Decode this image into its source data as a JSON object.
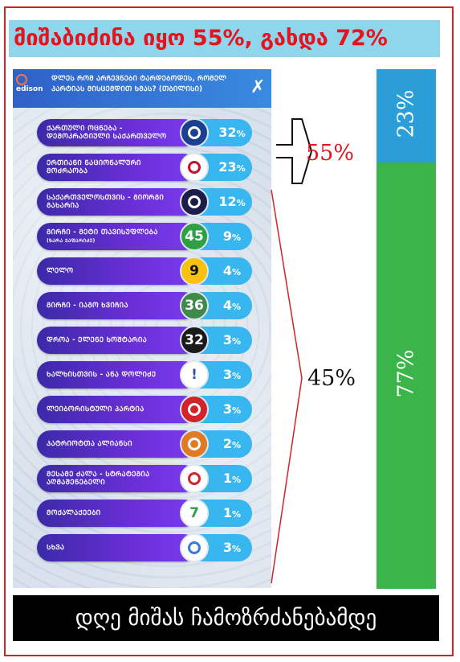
{
  "headline": "მიშაბიძინა იყო 55%, გახდა 72%",
  "poll": {
    "logo_text": "edison",
    "question": "ᲓᲚᲔᲡ ᲠᲝᲛ ᲐᲠᲩᲔᲕᲜᲔᲑᲘ ᲢᲐᲠᲓᲔᲑᲝᲓᲔᲡ, ᲠᲝᲛᲔᲚ ᲞᲐᲠᲢᲘᲐᲡ ᲛᲘᲡᲪᲔᲛᲓᲘᲗ ᲮᲛᲐᲡ? (ᲗᲑᲘᲚᲘᲡᲘ)",
    "rows": [
      {
        "label": "ᲥᲐᲠᲗᲣᲚᲘ ᲝᲪᲜᲔᲑᲐ - ᲓᲔᲛᲝᲙᲠᲐᲢᲘᲣᲚᲘ ᲡᲐᲥᲐᲠᲗᲕᲔᲚᲝ",
        "sub": "",
        "pct": "32",
        "logo_text": "",
        "logo_color": "#1c3f8f",
        "logo_bg": "#1c3f8f",
        "icon": "georgian-dream-logo-icon"
      },
      {
        "label": "ᲔᲠᲗᲘᲐᲜᲘ ᲜᲐᲪᲘᲝᲜᲐᲚᲣᲠᲘ ᲛᲝᲫᲠᲐᲝᲑᲐ",
        "sub": "",
        "pct": "23",
        "logo_text": "",
        "logo_color": "#c8102e",
        "logo_bg": "#ffffff",
        "icon": "unm-logo-icon"
      },
      {
        "label": "ᲡᲐᲥᲐᲠᲗᲕᲔᲚᲝᲡᲗᲕᲘᲡ - ᲒᲘᲝᲠᲒᲘ ᲒᲐᲮᲐᲠᲘᲐ",
        "sub": "",
        "pct": "12",
        "logo_text": "",
        "logo_color": "#2a2f9a",
        "logo_bg": "#1d1d4b",
        "icon": "for-georgia-logo-icon"
      },
      {
        "label": "ᲒᲘᲠᲩᲘ - ᲛᲔᲢᲘ ᲗᲐᲕᲘᲡᲣᲤᲚᲔᲑᲐ",
        "sub": "(ᲖᲐᲠᲐ ᲯᲐᲤᲐᲠᲘᲫᲔ)",
        "pct": "9",
        "logo_text": "45",
        "logo_color": "#ffffff",
        "logo_bg": "#2ea043",
        "icon": "girchi-more-freedom-logo-icon"
      },
      {
        "label": "ᲚᲔᲚᲝ",
        "sub": "",
        "pct": "4",
        "logo_text": "9",
        "logo_color": "#111111",
        "logo_bg": "#f6c20f",
        "icon": "lelo-logo-icon"
      },
      {
        "label": "ᲒᲘᲠᲩᲘ - ᲘᲐᲒᲝ ᲮᲕᲘᲩᲘᲐ",
        "sub": "",
        "pct": "4",
        "logo_text": "36",
        "logo_color": "#ffffff",
        "logo_bg": "#3e8a4a",
        "icon": "girchi-logo-icon"
      },
      {
        "label": "ᲓᲠᲝᲐ - ᲔᲚᲔᲜᲔ ᲮᲝᲨᲢᲐᲠᲘᲐ",
        "sub": "",
        "pct": "3",
        "logo_text": "32",
        "logo_color": "#ffffff",
        "logo_bg": "#1a1a1a",
        "icon": "droa-logo-icon"
      },
      {
        "label": "ᲮᲐᲚᲮᲘᲡᲗᲕᲘᲡ - ᲐᲜᲐ ᲓᲝᲚᲘᲫᲔ",
        "sub": "",
        "pct": "3",
        "logo_text": "!",
        "logo_color": "#2b4fbf",
        "logo_bg": "#ffffff",
        "icon": "for-the-people-logo-icon"
      },
      {
        "label": "ᲚᲔᲘᲑᲝᲠᲘᲡᲢᲣᲚᲘ ᲞᲐᲠᲢᲘᲐ",
        "sub": "",
        "pct": "3",
        "logo_text": "",
        "logo_color": "#d2232a",
        "logo_bg": "#d2232a",
        "icon": "labour-party-logo-icon"
      },
      {
        "label": "ᲞᲐᲢᲠᲘᲝᲢᲗᲐ ᲐᲚᲘᲐᲜᲡᲘ",
        "sub": "",
        "pct": "2",
        "logo_text": "",
        "logo_color": "#c0392b",
        "logo_bg": "#e07a24",
        "icon": "patriots-alliance-logo-icon"
      },
      {
        "label": "ᲛᲔᲡᲐᲛᲔ ᲫᲐᲚᲐ - ᲡᲢᲠᲐᲢᲔᲒᲘᲐ ᲐᲦᲛᲐᲨᲔᲜᲔᲑᲔᲚᲘ",
        "sub": "",
        "pct": "1",
        "logo_text": "",
        "logo_color": "#d2232a",
        "logo_bg": "#ffffff",
        "icon": "third-force-logo-icon"
      },
      {
        "label": "ᲛᲝᲥᲐᲚᲐᲥᲔᲔᲑᲘ",
        "sub": "",
        "pct": "1",
        "logo_text": "7",
        "logo_color": "#2ea043",
        "logo_bg": "#ffffff",
        "icon": "citizens-logo-icon"
      },
      {
        "label": "ᲡᲮᲕᲐ",
        "sub": "",
        "pct": "3",
        "logo_text": "",
        "logo_color": "#3a7bd5",
        "logo_bg": "#ffffff",
        "icon": "others-people-icon"
      }
    ]
  },
  "bracket": {
    "top_label": "55%",
    "bottom_label": "45%"
  },
  "bar": {
    "top_label": "23%",
    "bottom_label": "77%",
    "top_share": 23,
    "bottom_share": 77,
    "top_color": "#2b9ed8",
    "bottom_color": "#3bb54a"
  },
  "banner": "დღე მიშას ჩამოზრძანებამდე",
  "colors": {
    "accent_red": "#e3141e",
    "headline_bg": "#8fd6ec",
    "pill_purple": "#5b2cc9",
    "pct_blue": "#38b6f0"
  }
}
